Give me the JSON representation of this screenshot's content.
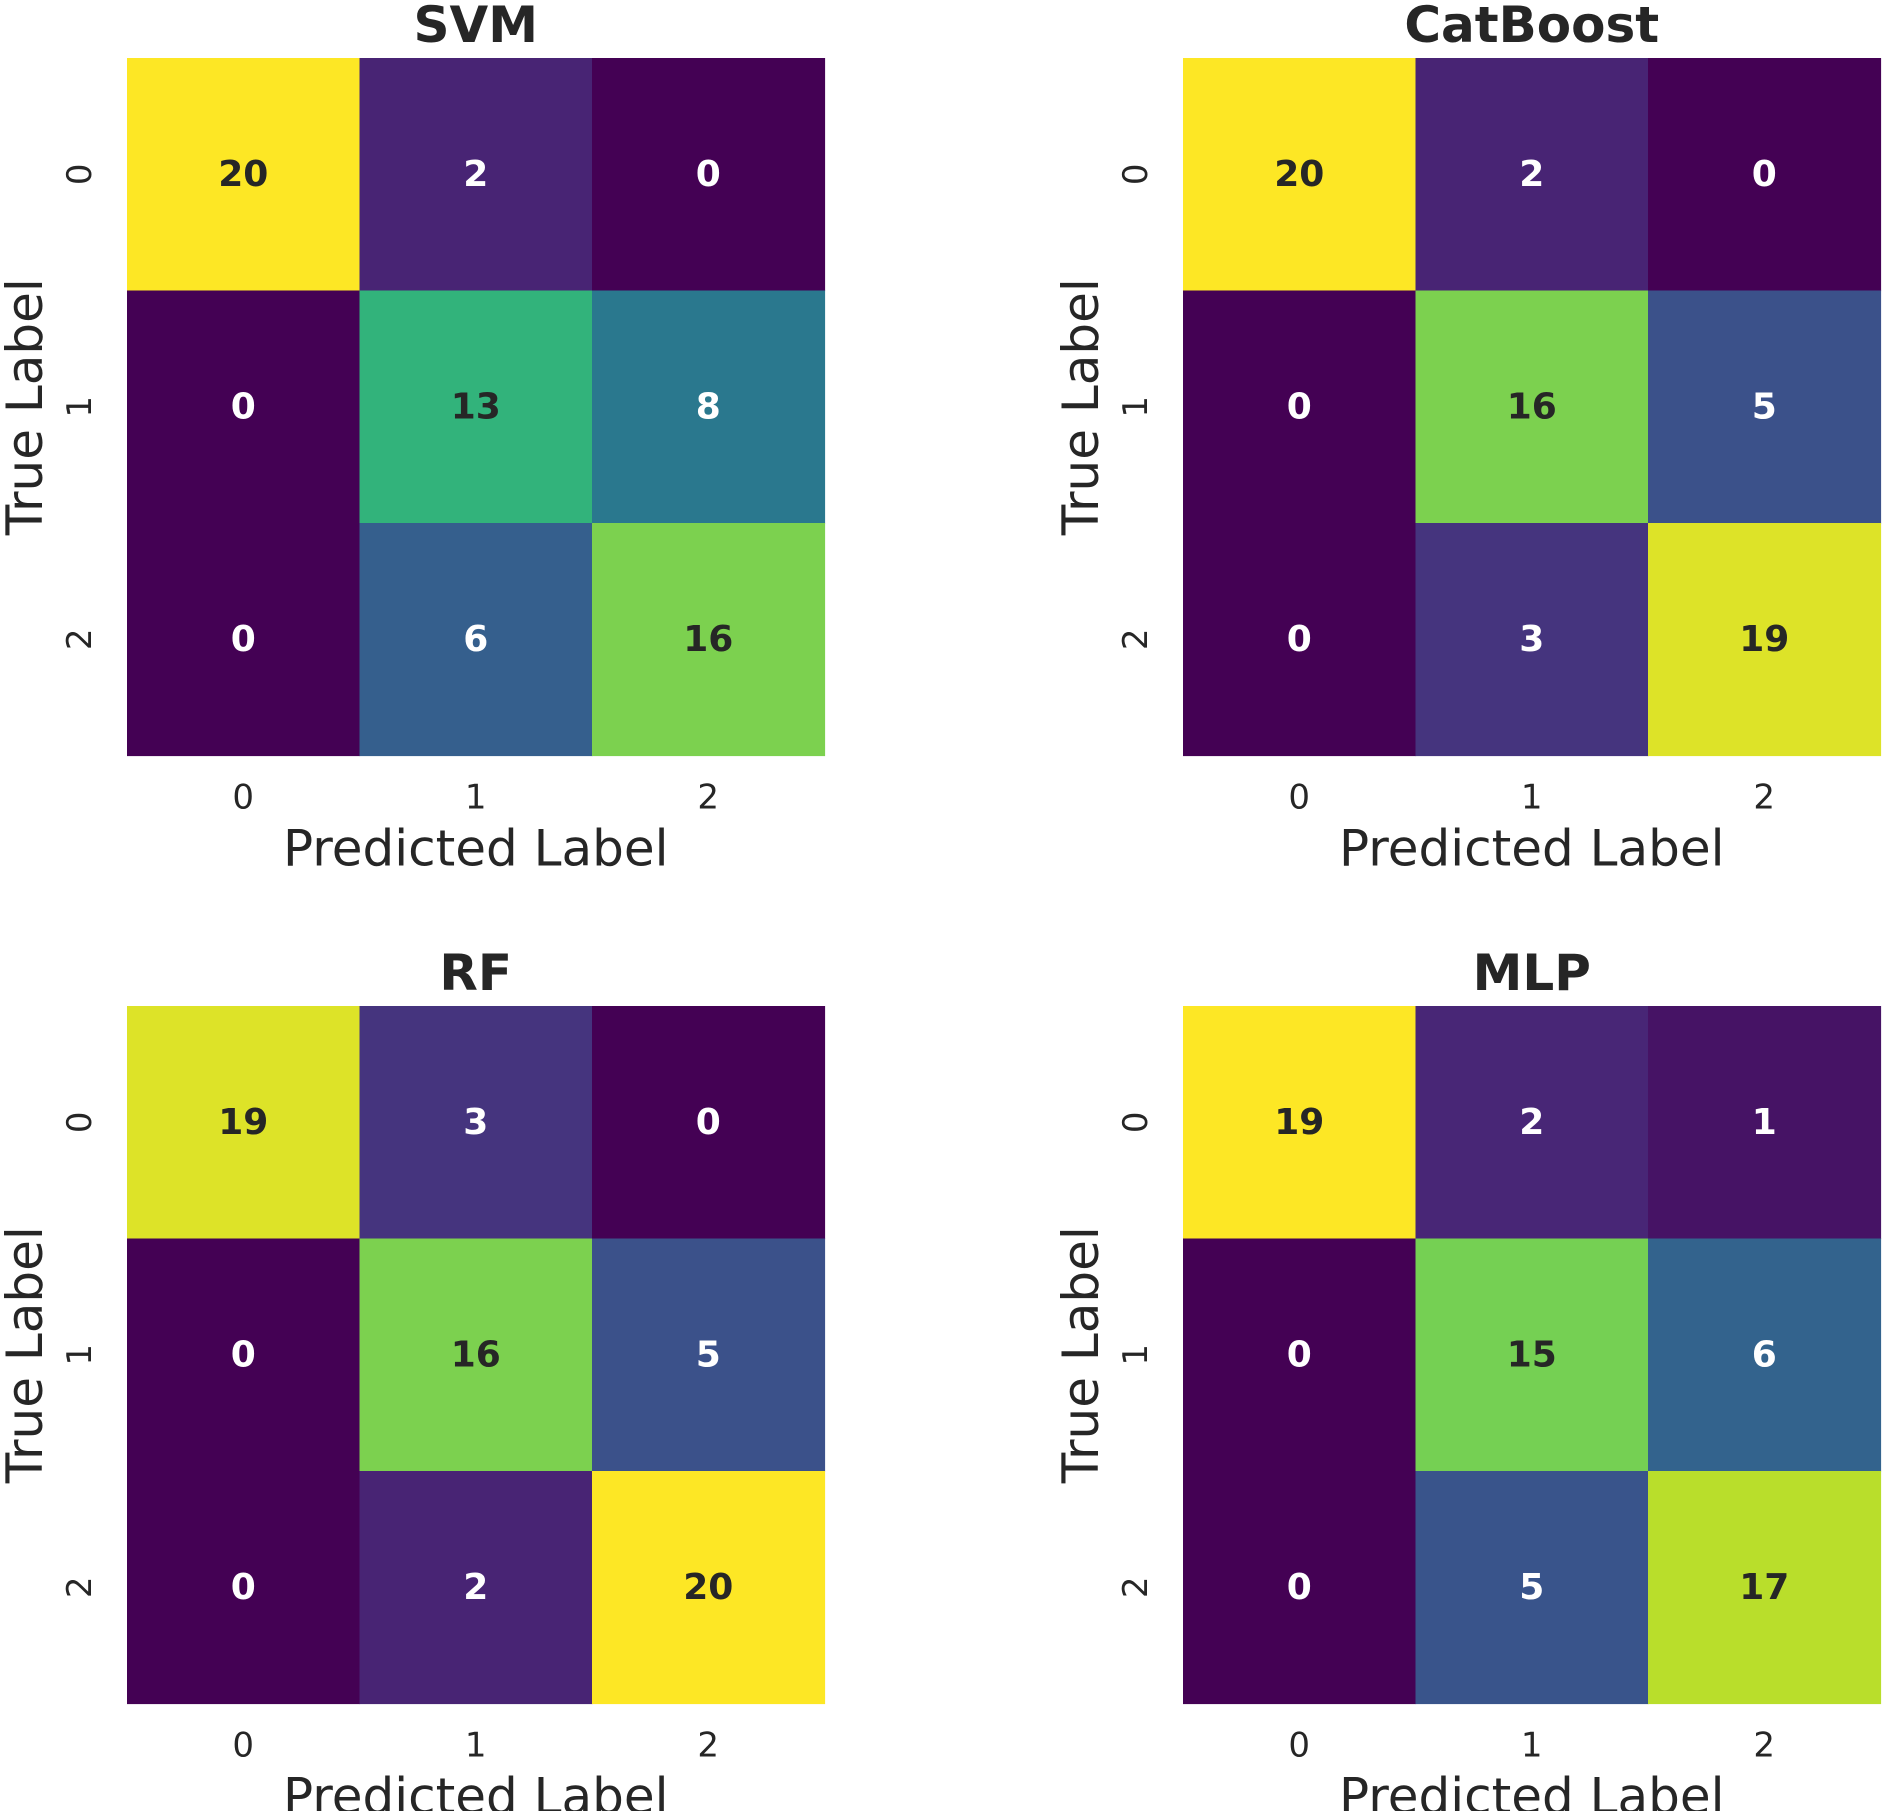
{
  "chart_data": [
    {
      "type": "heatmap",
      "title": "SVM",
      "xlabel": "Predicted Label",
      "ylabel": "True Label",
      "x_ticks": [
        "0",
        "1",
        "2"
      ],
      "y_ticks": [
        "0",
        "1",
        "2"
      ],
      "matrix": [
        [
          20,
          2,
          0
        ],
        [
          0,
          13,
          8
        ],
        [
          0,
          6,
          16
        ]
      ],
      "colormap": "viridis",
      "colorbar": false
    },
    {
      "type": "heatmap",
      "title": "CatBoost",
      "xlabel": "Predicted Label",
      "ylabel": "True Label",
      "x_ticks": [
        "0",
        "1",
        "2"
      ],
      "y_ticks": [
        "0",
        "1",
        "2"
      ],
      "matrix": [
        [
          20,
          2,
          0
        ],
        [
          0,
          16,
          5
        ],
        [
          0,
          3,
          19
        ]
      ],
      "colormap": "viridis",
      "colorbar": false
    },
    {
      "type": "heatmap",
      "title": "RF",
      "xlabel": "Predicted Label",
      "ylabel": "True Label",
      "x_ticks": [
        "0",
        "1",
        "2"
      ],
      "y_ticks": [
        "0",
        "1",
        "2"
      ],
      "matrix": [
        [
          19,
          3,
          0
        ],
        [
          0,
          16,
          5
        ],
        [
          0,
          2,
          20
        ]
      ],
      "colormap": "viridis",
      "colorbar": false
    },
    {
      "type": "heatmap",
      "title": "MLP",
      "xlabel": "Predicted Label",
      "ylabel": "True Label",
      "x_ticks": [
        "0",
        "1",
        "2"
      ],
      "y_ticks": [
        "0",
        "1",
        "2"
      ],
      "matrix": [
        [
          19,
          2,
          1
        ],
        [
          0,
          15,
          6
        ],
        [
          0,
          5,
          17
        ]
      ],
      "colormap": "viridis",
      "colorbar": false
    }
  ],
  "colors": {
    "text": "#262626",
    "background": "#ffffff",
    "viridis": [
      "#440154",
      "#482878",
      "#3e4989",
      "#31688e",
      "#26828e",
      "#1f9e89",
      "#35b779",
      "#6ece58",
      "#b5de2b",
      "#fde725"
    ]
  }
}
